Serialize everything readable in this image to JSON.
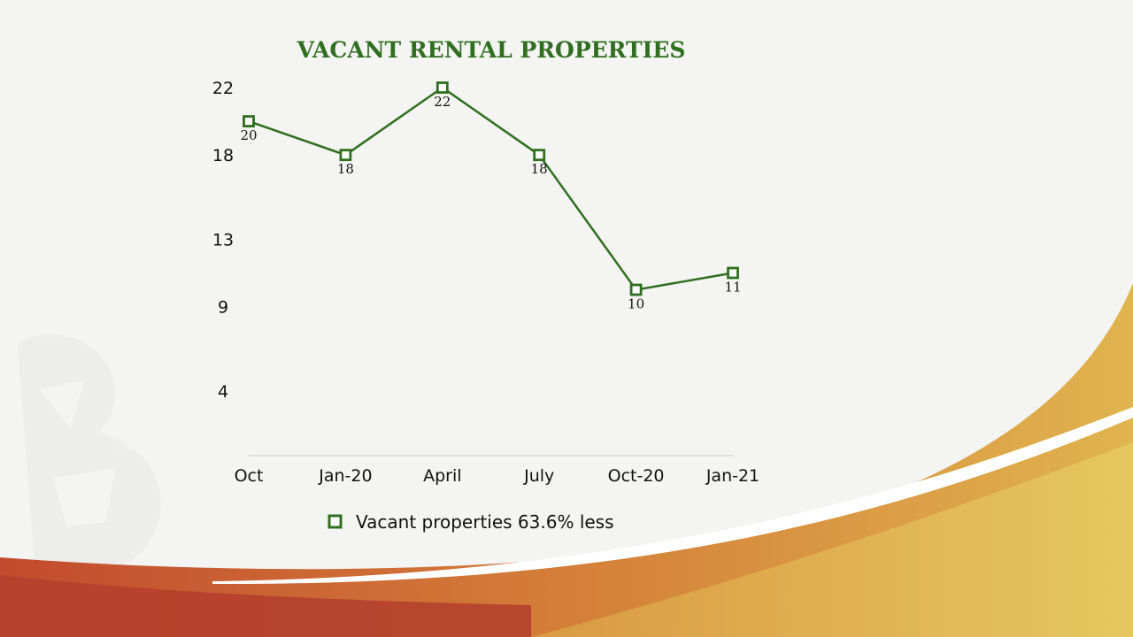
{
  "colors": {
    "series": "#2f6f1f",
    "title": "#2f6f1f",
    "axis": "#cfcfcf",
    "background": "#f4f4f2",
    "wave_red": "#b8402c",
    "wave_orange": "#d8893a",
    "wave_gold": "#e2c25c"
  },
  "chart_data": {
    "type": "line",
    "title": "VACANT RENTAL PROPERTIES",
    "categories": [
      "Oct",
      "Jan-20",
      "April",
      "July",
      "Oct-20",
      "Jan-21"
    ],
    "series": [
      {
        "name": "Vacant properties 63.6% less",
        "values": [
          20,
          18,
          22,
          18,
          10,
          11
        ],
        "data_labels": [
          "20",
          "18",
          "22",
          "18",
          "10",
          "11"
        ],
        "marker": "hollow-square"
      }
    ],
    "ylim": [
      0,
      22
    ],
    "yticks": [
      4,
      9,
      13,
      18,
      22
    ],
    "ytick_labels": [
      "4",
      "9",
      "13",
      "18",
      "22"
    ],
    "legend": "bottom",
    "grid": false
  }
}
